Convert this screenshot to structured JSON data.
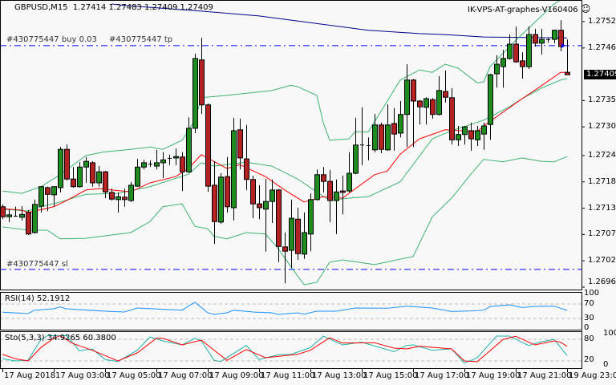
{
  "header": {
    "symbol": "GBPUSD,M15",
    "ohlc": "1.27414 1.27483 1.27409 1.27409",
    "expert": "IK-VPS-AT-graphes-V160406",
    "expert_icon": "smiley-icon"
  },
  "orders": {
    "tp_label": "#430775447 tp",
    "buy_label": "#430775447 buy 0.03",
    "buy_price": 1.2747,
    "sl_label": "#430775447 sl",
    "sl_price": 1.27002,
    "line_color": "#0000ff"
  },
  "colors": {
    "bull": "#1e8c1e",
    "bear": "#b22222",
    "bands": "#3cb371",
    "ma_fast": "#ff0000",
    "ma_slow": "#00008b",
    "rsi": "#1e90ff",
    "sto_main": "#20b2aa",
    "sto_signal": "#ff0000"
  },
  "price_axis": {
    "labels": [
      "1.27520",
      "1.27465",
      "1.27355",
      "1.27300",
      "1.27240",
      "1.27185",
      "1.27130",
      "1.27075",
      "1.27020",
      "1.26965"
    ],
    "current": "1.27409"
  },
  "rsi": {
    "title": "RSI(14) 52.1912",
    "levels": [
      70,
      30
    ],
    "axis": [
      "100",
      "70",
      "30",
      "0"
    ]
  },
  "sto": {
    "title": "Sto(5,3,3) 34.9265 60.3800",
    "levels": [
      80,
      20
    ],
    "axis": [
      "100",
      "80",
      "20",
      "0"
    ]
  },
  "time_axis": [
    "17 Aug 2018",
    "17 Aug 03:00",
    "17 Aug 05:00",
    "17 Aug 07:00",
    "17 Aug 09:00",
    "17 Aug 11:00",
    "17 Aug 13:00",
    "17 Aug 15:00",
    "17 Aug 17:00",
    "17 Aug 19:00",
    "17 Aug 21:00",
    "19 Aug 23:00"
  ],
  "chart_data": {
    "type": "candlestick",
    "ohlc": [
      [
        1.27133,
        1.27138,
        1.27107,
        1.27112
      ],
      [
        1.27112,
        1.27128,
        1.27101,
        1.27116
      ],
      [
        1.27114,
        1.27133,
        1.27112,
        1.27114
      ],
      [
        1.27111,
        1.27134,
        1.27104,
        1.27117
      ],
      [
        1.27121,
        1.27126,
        1.27074,
        1.27076
      ],
      [
        1.27079,
        1.27148,
        1.27077,
        1.27138
      ],
      [
        1.27134,
        1.27176,
        1.27121,
        1.27175
      ],
      [
        1.27173,
        1.27175,
        1.27124,
        1.27159
      ],
      [
        1.27158,
        1.27176,
        1.27134,
        1.27175
      ],
      [
        1.27173,
        1.27258,
        1.27163,
        1.27253
      ],
      [
        1.27253,
        1.27263,
        1.27188,
        1.27191
      ],
      [
        1.27191,
        1.27216,
        1.27173,
        1.27175
      ],
      [
        1.27175,
        1.27226,
        1.27173,
        1.27216
      ],
      [
        1.27216,
        1.27237,
        1.27183,
        1.27228
      ],
      [
        1.27225,
        1.27228,
        1.27175,
        1.27183
      ],
      [
        1.27183,
        1.27218,
        1.27175,
        1.27206
      ],
      [
        1.27206,
        1.27208,
        1.27151,
        1.27164
      ],
      [
        1.27163,
        1.27171,
        1.27146,
        1.27149
      ],
      [
        1.27148,
        1.27163,
        1.27121,
        1.27154
      ],
      [
        1.27153,
        1.27171,
        1.27133,
        1.27148
      ],
      [
        1.27146,
        1.27185,
        1.27143,
        1.27178
      ],
      [
        1.27176,
        1.27233,
        1.27175,
        1.27216
      ],
      [
        1.27216,
        1.27231,
        1.27211,
        1.27225
      ],
      [
        1.27223,
        1.2723,
        1.27216,
        1.27223
      ],
      [
        1.27218,
        1.27252,
        1.27211,
        1.27225
      ],
      [
        1.27225,
        1.27247,
        1.27193,
        1.27231
      ],
      [
        1.27235,
        1.27242,
        1.2722,
        1.27235
      ],
      [
        1.27235,
        1.27255,
        1.2722,
        1.27238
      ],
      [
        1.27237,
        1.27247,
        1.27166,
        1.27206
      ],
      [
        1.27206,
        1.2732,
        1.27204,
        1.27297
      ],
      [
        1.27297,
        1.27453,
        1.27287,
        1.27443
      ],
      [
        1.2744,
        1.27486,
        1.27327,
        1.27346
      ],
      [
        1.27346,
        1.27349,
        1.27164,
        1.27176
      ],
      [
        1.27178,
        1.27228,
        1.27055,
        1.27102
      ],
      [
        1.27101,
        1.27203,
        1.27097,
        1.27195
      ],
      [
        1.27196,
        1.27237,
        1.27121,
        1.27133
      ],
      [
        1.27131,
        1.27319,
        1.27104,
        1.27292
      ],
      [
        1.27294,
        1.27317,
        1.27211,
        1.27235
      ],
      [
        1.27233,
        1.27304,
        1.27168,
        1.2719
      ],
      [
        1.2719,
        1.27198,
        1.27109,
        1.27139
      ],
      [
        1.27139,
        1.27178,
        1.27107,
        1.27131
      ],
      [
        1.27128,
        1.27191,
        1.27039,
        1.27144
      ],
      [
        1.27144,
        1.2719,
        1.27099,
        1.27168
      ],
      [
        1.27168,
        1.2717,
        1.27017,
        1.2705
      ],
      [
        1.27049,
        1.27079,
        1.26973,
        1.2704
      ],
      [
        1.27042,
        1.27148,
        1.27005,
        1.27109
      ],
      [
        1.27107,
        1.27131,
        1.27022,
        1.27035
      ],
      [
        1.27034,
        1.27121,
        1.27024,
        1.27079
      ],
      [
        1.27076,
        1.27161,
        1.2704,
        1.27148
      ],
      [
        1.27148,
        1.27211,
        1.27146,
        1.272
      ],
      [
        1.272,
        1.27216,
        1.27163,
        1.27186
      ],
      [
        1.27186,
        1.2721,
        1.27101,
        1.27146
      ],
      [
        1.27146,
        1.2719,
        1.27076,
        1.27164
      ],
      [
        1.27166,
        1.27198,
        1.27117,
        1.27163
      ],
      [
        1.27166,
        1.27247,
        1.27163,
        1.27203
      ],
      [
        1.27203,
        1.27319,
        1.27201,
        1.27262
      ],
      [
        1.27263,
        1.27341,
        1.2722,
        1.27263
      ],
      [
        1.27262,
        1.27278,
        1.2723,
        1.27262
      ],
      [
        1.27252,
        1.27327,
        1.27247,
        1.27304
      ],
      [
        1.27304,
        1.27309,
        1.27245,
        1.27253
      ],
      [
        1.27252,
        1.27347,
        1.2725,
        1.27304
      ],
      [
        1.27307,
        1.27339,
        1.2725,
        1.27285
      ],
      [
        1.27287,
        1.27354,
        1.27278,
        1.27326
      ],
      [
        1.27326,
        1.27431,
        1.27258,
        1.27398
      ],
      [
        1.27398,
        1.274,
        1.27258,
        1.27354
      ],
      [
        1.27354,
        1.27356,
        1.27305,
        1.27342
      ],
      [
        1.27341,
        1.27362,
        1.27305,
        1.27359
      ],
      [
        1.27357,
        1.2736,
        1.27317,
        1.27326
      ],
      [
        1.27326,
        1.27406,
        1.27324,
        1.27376
      ],
      [
        1.27374,
        1.27418,
        1.27351,
        1.27362
      ],
      [
        1.27361,
        1.27381,
        1.27263,
        1.27273
      ],
      [
        1.27273,
        1.27302,
        1.2726,
        1.27284
      ],
      [
        1.27284,
        1.27302,
        1.27263,
        1.273
      ],
      [
        1.27292,
        1.27309,
        1.2725,
        1.27275
      ],
      [
        1.27273,
        1.27302,
        1.2726,
        1.27292
      ],
      [
        1.27285,
        1.27309,
        1.27252,
        1.27302
      ],
      [
        1.27305,
        1.27411,
        1.27273,
        1.27409
      ],
      [
        1.27411,
        1.2745,
        1.27382,
        1.27431
      ],
      [
        1.27426,
        1.27461,
        1.27382,
        1.27443
      ],
      [
        1.27443,
        1.27493,
        1.27441,
        1.27473
      ],
      [
        1.27473,
        1.2751,
        1.27434,
        1.27436
      ],
      [
        1.27438,
        1.27456,
        1.27401,
        1.27426
      ],
      [
        1.27426,
        1.2751,
        1.27421,
        1.27493
      ],
      [
        1.27493,
        1.27505,
        1.27468,
        1.27475
      ],
      [
        1.27475,
        1.27505,
        1.27451,
        1.27483
      ],
      [
        1.27483,
        1.27486,
        1.27476,
        1.27483
      ],
      [
        1.27483,
        1.27503,
        1.27475,
        1.27502
      ],
      [
        1.27502,
        1.27523,
        1.27458,
        1.27468
      ],
      [
        1.27414,
        1.27483,
        1.27409,
        1.27409
      ]
    ],
    "bb_upper": [
      [
        0,
        1.27166
      ],
      [
        3,
        1.27161
      ],
      [
        6,
        1.27175
      ],
      [
        9,
        1.272
      ],
      [
        13,
        1.2724
      ],
      [
        16,
        1.27248
      ],
      [
        20,
        1.27253
      ],
      [
        23,
        1.27258
      ],
      [
        25,
        1.27253
      ],
      [
        28,
        1.27272
      ],
      [
        30,
        1.27314
      ],
      [
        31,
        1.27361
      ],
      [
        35,
        1.27366
      ],
      [
        42,
        1.27376
      ],
      [
        45,
        1.27387
      ],
      [
        46,
        1.27384
      ],
      [
        49,
        1.27366
      ],
      [
        50,
        1.27309
      ],
      [
        51,
        1.27272
      ],
      [
        54,
        1.27275
      ],
      [
        55,
        1.2729
      ],
      [
        57,
        1.27289
      ],
      [
        62,
        1.27398
      ],
      [
        65,
        1.27419
      ],
      [
        67,
        1.27414
      ],
      [
        69,
        1.27431
      ],
      [
        71,
        1.27423
      ],
      [
        74,
        1.27392
      ],
      [
        75,
        1.27394
      ],
      [
        76,
        1.27426
      ],
      [
        80,
        1.27481
      ],
      [
        86,
        1.27557
      ],
      [
        88,
        1.27574
      ]
    ],
    "bb_middle": [
      [
        0,
        1.27128
      ],
      [
        4,
        1.27124
      ],
      [
        6,
        1.27133
      ],
      [
        9,
        1.27143
      ],
      [
        13,
        1.27159
      ],
      [
        18,
        1.27161
      ],
      [
        23,
        1.27175
      ],
      [
        29,
        1.27201
      ],
      [
        31,
        1.27225
      ],
      [
        33,
        1.27218
      ],
      [
        38,
        1.27226
      ],
      [
        42,
        1.27218
      ],
      [
        46,
        1.27191
      ],
      [
        48,
        1.27173
      ],
      [
        51,
        1.27146
      ],
      [
        54,
        1.27151
      ],
      [
        57,
        1.27154
      ],
      [
        62,
        1.27185
      ],
      [
        67,
        1.27275
      ],
      [
        70,
        1.27292
      ],
      [
        75,
        1.27314
      ],
      [
        79,
        1.27342
      ],
      [
        81,
        1.27359
      ],
      [
        84,
        1.27381
      ],
      [
        87,
        1.27398
      ],
      [
        88,
        1.27401
      ]
    ],
    "bb_lower": [
      [
        0,
        1.27091
      ],
      [
        4,
        1.27084
      ],
      [
        7,
        1.27084
      ],
      [
        9,
        1.27066
      ],
      [
        13,
        1.27067
      ],
      [
        17,
        1.27074
      ],
      [
        20,
        1.27079
      ],
      [
        23,
        1.27102
      ],
      [
        25,
        1.27133
      ],
      [
        28,
        1.27139
      ],
      [
        30,
        1.27092
      ],
      [
        32,
        1.27087
      ],
      [
        33,
        1.27071
      ],
      [
        35,
        1.27066
      ],
      [
        38,
        1.27079
      ],
      [
        41,
        1.27076
      ],
      [
        43,
        1.27045
      ],
      [
        45,
        1.27007
      ],
      [
        47,
        1.2697
      ],
      [
        49,
        1.26975
      ],
      [
        51,
        1.27017
      ],
      [
        53,
        1.27022
      ],
      [
        58,
        1.27012
      ],
      [
        64,
        1.27029
      ],
      [
        67,
        1.27112
      ],
      [
        70,
        1.27151
      ],
      [
        73,
        1.27201
      ],
      [
        75,
        1.27232
      ],
      [
        78,
        1.27227
      ],
      [
        81,
        1.27235
      ],
      [
        84,
        1.27228
      ],
      [
        86,
        1.27227
      ],
      [
        88,
        1.27238
      ]
    ],
    "ma_fast": [
      [
        0,
        1.27129
      ],
      [
        3,
        1.27126
      ],
      [
        4,
        1.27121
      ],
      [
        8,
        1.27133
      ],
      [
        10,
        1.27146
      ],
      [
        13,
        1.27168
      ],
      [
        15,
        1.27171
      ],
      [
        20,
        1.27164
      ],
      [
        23,
        1.27183
      ],
      [
        27,
        1.27196
      ],
      [
        29,
        1.27213
      ],
      [
        31,
        1.27242
      ],
      [
        35,
        1.27213
      ],
      [
        37,
        1.27221
      ],
      [
        41,
        1.27196
      ],
      [
        44,
        1.27168
      ],
      [
        47,
        1.27143
      ],
      [
        50,
        1.27154
      ],
      [
        53,
        1.27151
      ],
      [
        58,
        1.272
      ],
      [
        60,
        1.27208
      ],
      [
        62,
        1.27243
      ],
      [
        65,
        1.27275
      ],
      [
        69,
        1.27294
      ],
      [
        74,
        1.2729
      ],
      [
        75,
        1.27302
      ],
      [
        81,
        1.27359
      ],
      [
        84,
        1.27386
      ],
      [
        87,
        1.27414
      ],
      [
        88,
        1.27414
      ]
    ],
    "ma_slow": [
      [
        17,
        1.27557
      ],
      [
        19,
        1.27554
      ],
      [
        31,
        1.27542
      ],
      [
        40,
        1.27532
      ],
      [
        57,
        1.27502
      ],
      [
        65,
        1.27495
      ],
      [
        69,
        1.27493
      ],
      [
        75,
        1.27488
      ],
      [
        88,
        1.27486
      ]
    ],
    "rsi_values": [
      [
        0,
        47.1
      ],
      [
        4,
        43.3
      ],
      [
        5,
        52.9
      ],
      [
        8,
        56.7
      ],
      [
        9,
        61.8
      ],
      [
        10,
        56.7
      ],
      [
        16,
        50
      ],
      [
        19,
        47.8
      ],
      [
        21,
        58.9
      ],
      [
        28,
        52.9
      ],
      [
        30,
        75.1
      ],
      [
        32,
        45.6
      ],
      [
        33,
        41.1
      ],
      [
        35,
        45.6
      ],
      [
        36,
        52.9
      ],
      [
        39,
        47.8
      ],
      [
        42,
        45.6
      ],
      [
        43,
        41.1
      ],
      [
        46,
        45.6
      ],
      [
        47,
        41.8
      ],
      [
        49,
        50
      ],
      [
        52,
        50
      ],
      [
        55,
        58.9
      ],
      [
        60,
        58.2
      ],
      [
        63,
        64
      ],
      [
        67,
        58.9
      ],
      [
        70,
        49.3
      ],
      [
        73,
        50.7
      ],
      [
        75,
        52.9
      ],
      [
        76,
        62.7
      ],
      [
        79,
        67.8
      ],
      [
        81,
        60.4
      ],
      [
        83,
        63.3
      ],
      [
        86,
        64
      ],
      [
        88,
        52.19
      ]
    ],
    "sto_main": [
      [
        0,
        26
      ],
      [
        2,
        20
      ],
      [
        4,
        21.6
      ],
      [
        6,
        79.3
      ],
      [
        7,
        90
      ],
      [
        10,
        90
      ],
      [
        12,
        48.2
      ],
      [
        14,
        53.3
      ],
      [
        16,
        23.8
      ],
      [
        18,
        18.4
      ],
      [
        21,
        49.6
      ],
      [
        23,
        86.7
      ],
      [
        25,
        75.6
      ],
      [
        28,
        64.4
      ],
      [
        30,
        82.9
      ],
      [
        31,
        75.6
      ],
      [
        33,
        21.6
      ],
      [
        34,
        18.4
      ],
      [
        38,
        62.9
      ],
      [
        40,
        23.8
      ],
      [
        43,
        37.1
      ],
      [
        45,
        38.4
      ],
      [
        48,
        57.1
      ],
      [
        50,
        88.9
      ],
      [
        53,
        64.4
      ],
      [
        56,
        71.8
      ],
      [
        61,
        46
      ],
      [
        63,
        62.9
      ],
      [
        64,
        64.4
      ],
      [
        67,
        49.6
      ],
      [
        70,
        53.3
      ],
      [
        72,
        14
      ],
      [
        74,
        28.9
      ],
      [
        77,
        88.9
      ],
      [
        79,
        88.9
      ],
      [
        82,
        62.9
      ],
      [
        84,
        73.3
      ],
      [
        86,
        79.3
      ],
      [
        88,
        34.93
      ]
    ],
    "sto_signal": [
      [
        0,
        38.4
      ],
      [
        2,
        26
      ],
      [
        4,
        20
      ],
      [
        6,
        57.1
      ],
      [
        8,
        82.9
      ],
      [
        9,
        90
      ],
      [
        11,
        68.2
      ],
      [
        14,
        49.6
      ],
      [
        16,
        34.9
      ],
      [
        18,
        20
      ],
      [
        21,
        42.2
      ],
      [
        24,
        82.9
      ],
      [
        25,
        82.9
      ],
      [
        28,
        64.4
      ],
      [
        31,
        77.8
      ],
      [
        35,
        21.6
      ],
      [
        38,
        51.8
      ],
      [
        41,
        28.9
      ],
      [
        46,
        38.4
      ],
      [
        48,
        49.6
      ],
      [
        51,
        84.4
      ],
      [
        53,
        69.6
      ],
      [
        58,
        70.4
      ],
      [
        61,
        55.6
      ],
      [
        63,
        53.3
      ],
      [
        65,
        60.7
      ],
      [
        70,
        53.3
      ],
      [
        72,
        20
      ],
      [
        74,
        17.8
      ],
      [
        78,
        79.3
      ],
      [
        80,
        88.2
      ],
      [
        83,
        64.4
      ],
      [
        86,
        75.6
      ],
      [
        87,
        71.8
      ],
      [
        88,
        60.38
      ]
    ]
  }
}
